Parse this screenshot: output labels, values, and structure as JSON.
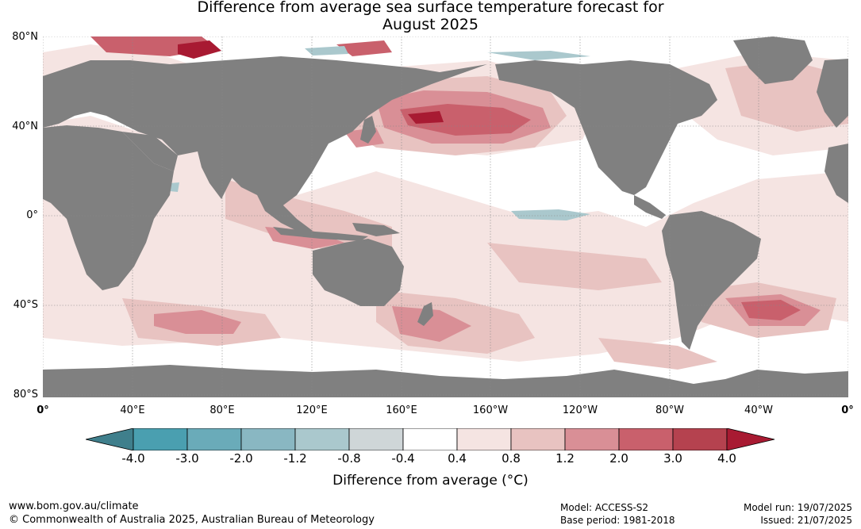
{
  "title": {
    "line1": "Difference from average sea surface temperature forecast for",
    "line2": "August 2025"
  },
  "lat_labels": [
    "80°N",
    "40°N",
    "0°",
    "40°S",
    "80°S"
  ],
  "lon_labels": [
    "0°",
    "40°E",
    "80°E",
    "120°E",
    "160°E",
    "160°W",
    "120°W",
    "80°W",
    "40°W",
    "0°"
  ],
  "colorbar": {
    "ticks": [
      "-4.0",
      "-3.0",
      "-2.0",
      "-1.2",
      "-0.8",
      "-0.4",
      "0.4",
      "0.8",
      "1.2",
      "2.0",
      "3.0",
      "4.0"
    ],
    "colors": [
      "#4a9fb0",
      "#6aabb9",
      "#89b7c2",
      "#aac8cd",
      "#cfd6d8",
      "#ffffff",
      "#f5e4e2",
      "#e8c3c1",
      "#d98f96",
      "#c9606c",
      "#b5424f"
    ],
    "under_color": "#3f7f8c",
    "over_color": "#a81a32",
    "label": "Difference from average (°C)"
  },
  "colors": {
    "land": "#808080",
    "ocean_base": "#ffffff",
    "warm_light": "#f5e4e2",
    "warm_mid": "#e8c3c1",
    "warm": "#d98f96",
    "warm_strong": "#c9606c",
    "warm_extreme": "#a81a32",
    "cool_light": "#aac8cd"
  },
  "footer": {
    "website": "www.bom.gov.au/climate",
    "copyright": "© Commonwealth of Australia 2025, Australian Bureau of Meteorology",
    "model": "Model: ACCESS-S2",
    "base_period": "Base period: 1981-2018",
    "model_run": "Model run: 19/07/2025",
    "issued": "Issued: 21/07/2025"
  }
}
